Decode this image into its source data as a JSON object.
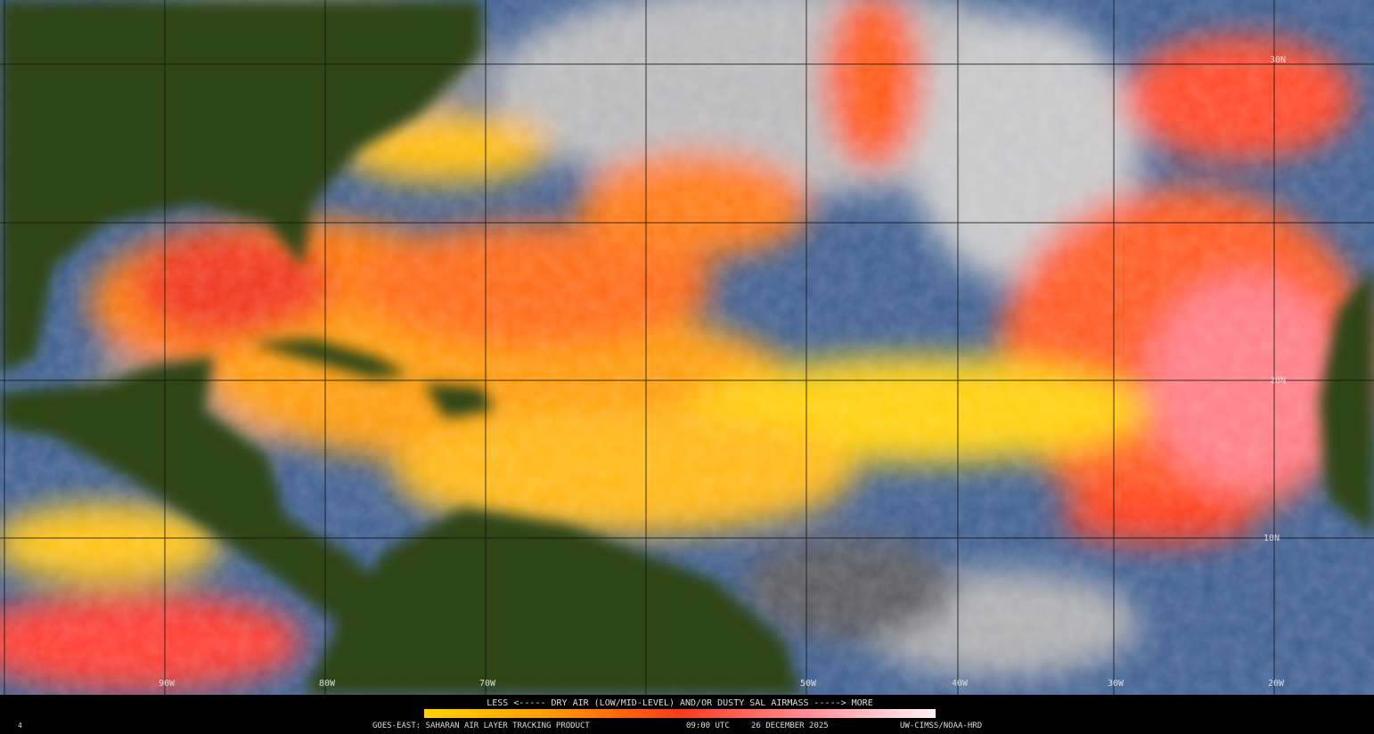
{
  "legend": {
    "caption": "LESS <----- DRY AIR (LOW/MID-LEVEL) AND/OR DUSTY SAL AIRMASS -----> MORE"
  },
  "footer": {
    "frame": "4",
    "product": "GOES-EAST: SAHARAN AIR LAYER TRACKING PRODUCT",
    "time": "09:00 UTC",
    "date": "26 DECEMBER 2025",
    "credit": "UW-CIMSS/NOAA-HRD"
  },
  "grid": {
    "longitude_labels": [
      "90W",
      "80W",
      "70W",
      "50W",
      "40W",
      "30W",
      "20W"
    ],
    "latitude_labels": [
      "30N",
      "20N",
      "10N"
    ]
  }
}
